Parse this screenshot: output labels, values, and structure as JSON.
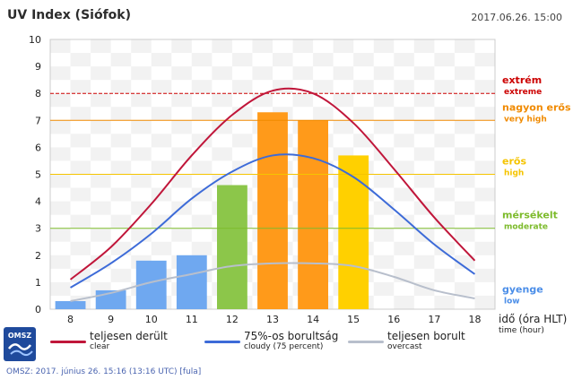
{
  "header": {
    "title": "UV Index (Siófok)",
    "datetime": "2017.06.26. 15:00"
  },
  "levels": [
    {
      "name": "extrém",
      "sub": "extreme",
      "value": 8,
      "color": "#cc0000"
    },
    {
      "name": "nagyon erős",
      "sub": "very high",
      "value": 7,
      "color": "#f08a00"
    },
    {
      "name": "erős",
      "sub": "high",
      "value": 5,
      "color": "#f5c400"
    },
    {
      "name": "mérsékelt",
      "sub": "moderate",
      "value": 3,
      "color": "#7dbb2c"
    },
    {
      "name": "gyenge",
      "sub": "low",
      "value": 0,
      "color": "#4b8ee8"
    }
  ],
  "chart_data": {
    "type": "bar",
    "title": "UV Index (Siófok)",
    "xlabel": "idő (óra HLT)",
    "xlabel_sub": "time (hour)",
    "ylabel": "",
    "ylim": [
      0,
      10
    ],
    "yticks": [
      0,
      1,
      2,
      3,
      4,
      5,
      6,
      7,
      8,
      9,
      10
    ],
    "categories": [
      "8",
      "9",
      "10",
      "11",
      "12",
      "13",
      "14",
      "15",
      "16",
      "17",
      "18"
    ],
    "bars": {
      "x": [
        "8",
        "9",
        "10",
        "11",
        "12",
        "13",
        "14",
        "15"
      ],
      "values": [
        0.3,
        0.7,
        1.8,
        2.0,
        4.6,
        7.3,
        7.0,
        5.7
      ],
      "colors": [
        "#6fa8f0",
        "#6fa8f0",
        "#6fa8f0",
        "#6fa8f0",
        "#8cc64a",
        "#ff9a1a",
        "#ff9a1a",
        "#ffd000"
      ]
    },
    "series": [
      {
        "name": "teljesen derült",
        "sub": "clear",
        "color": "#c0163a",
        "x": [
          8,
          9,
          10,
          11,
          12,
          13,
          14,
          15,
          16,
          17,
          18
        ],
        "values": [
          1.1,
          2.3,
          3.9,
          5.7,
          7.2,
          8.1,
          8.0,
          6.9,
          5.2,
          3.4,
          1.8
        ]
      },
      {
        "name": "75%-os borultság",
        "sub": "cloudy (75 percent)",
        "color": "#3d6bd8",
        "x": [
          8,
          9,
          10,
          11,
          12,
          13,
          14,
          15,
          16,
          17,
          18
        ],
        "values": [
          0.8,
          1.7,
          2.8,
          4.1,
          5.1,
          5.7,
          5.6,
          4.9,
          3.7,
          2.4,
          1.3
        ]
      },
      {
        "name": "teljesen borult",
        "sub": "overcast",
        "color": "#b8bfcc",
        "x": [
          8,
          9,
          10,
          11,
          12,
          13,
          14,
          15,
          16,
          17,
          18
        ],
        "values": [
          0.3,
          0.6,
          1.0,
          1.3,
          1.6,
          1.7,
          1.7,
          1.6,
          1.2,
          0.7,
          0.4
        ]
      }
    ],
    "grid": true,
    "legend": "bottom"
  },
  "logo": {
    "text": "OMSZ"
  },
  "footer": "OMSZ: 2017. június 26. 15:16 (13:16 UTC)  [fula]"
}
